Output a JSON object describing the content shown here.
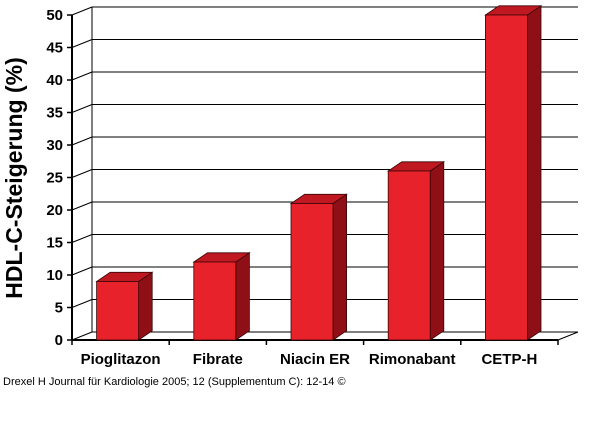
{
  "chart_data": {
    "type": "bar",
    "categories": [
      "Pioglitazon",
      "Fibrate",
      "Niacin ER",
      "Rimonabant",
      "CETP-H"
    ],
    "values": [
      9,
      12,
      21,
      26,
      50
    ],
    "title": "",
    "xlabel": "",
    "ylabel": "HDL-C-Steigerung (%)",
    "ylim": [
      0,
      50
    ],
    "yticks": [
      0,
      5,
      10,
      15,
      20,
      25,
      30,
      35,
      40,
      45,
      50
    ],
    "grid": true,
    "legend": "none",
    "bar_style": "3d",
    "colors": {
      "bar_front": "#e8222b",
      "bar_side": "#8e1016",
      "bar_top": "#c01820",
      "gridline": "#000000"
    }
  },
  "footer": {
    "citation": "Drexel H Journal für Kardiologie 2005; 12 (Supplementum C): 12-14 ©"
  }
}
